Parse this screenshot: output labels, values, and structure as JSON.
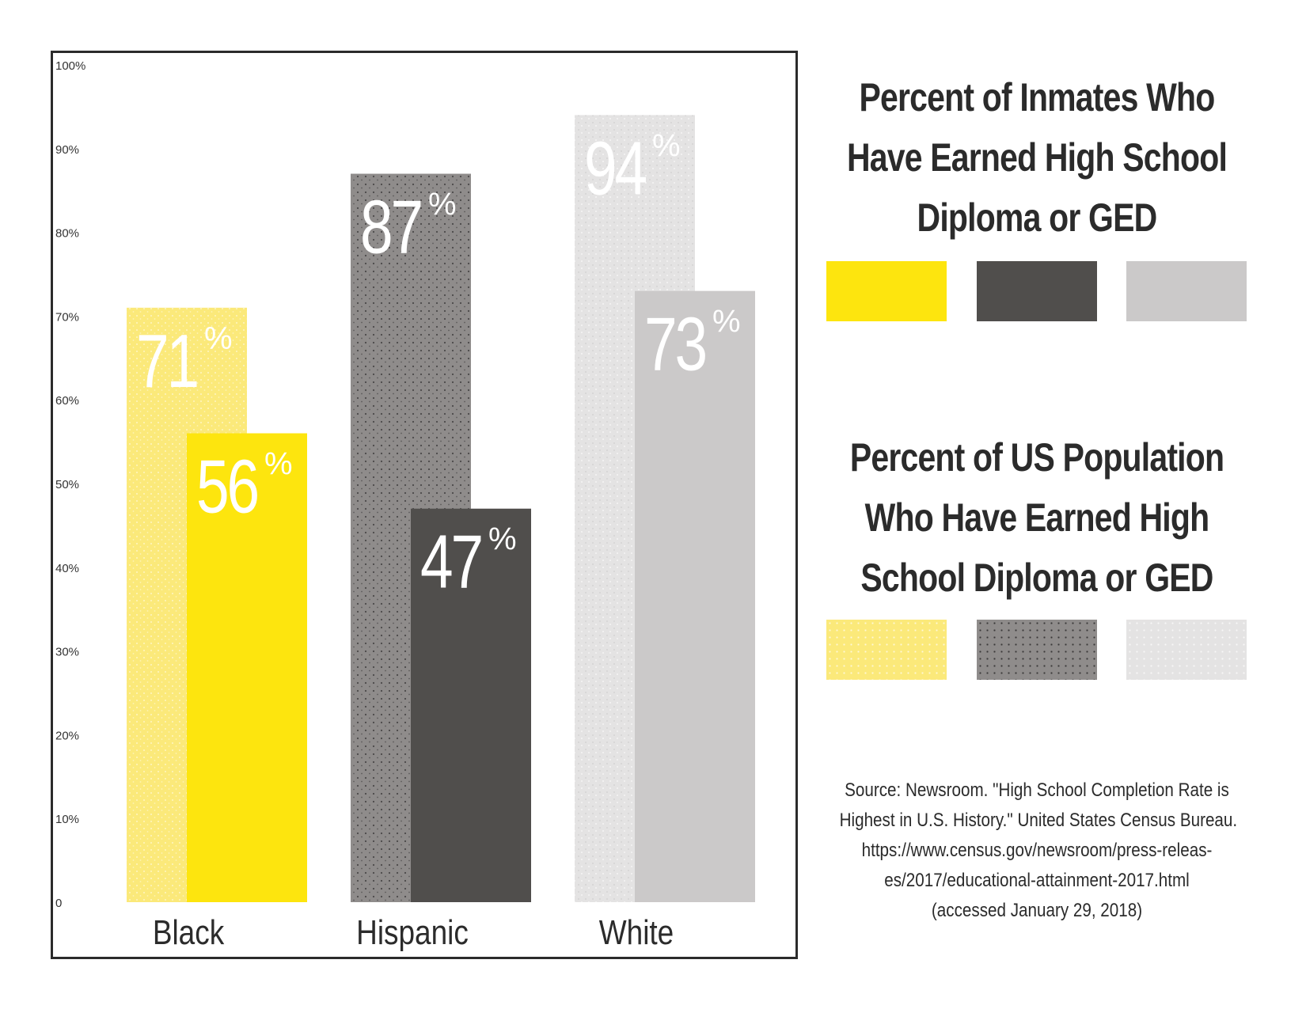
{
  "chart_data": {
    "type": "bar",
    "categories": [
      "Black",
      "Hispanic",
      "White"
    ],
    "series": [
      {
        "name": "Percent of US Population Who Have Earned High School Diploma or GED",
        "values": [
          71,
          87,
          94
        ],
        "color": "#fbe97a",
        "texture": "stippled"
      },
      {
        "name": "Percent of Inmates Who Have Earned High School Diploma or GED",
        "values": [
          56,
          47,
          73
        ],
        "color": "#fde50e"
      }
    ],
    "inmate_colors": [
      "#fde50e",
      "#504e4c",
      "#cbc9c9"
    ],
    "population_colors": [
      "#fbe97a",
      "#8f8c8b",
      "#e4e3e3"
    ],
    "data_labels": [
      {
        "population": "71",
        "inmates": "56"
      },
      {
        "population": "87",
        "inmates": "47"
      },
      {
        "population": "94",
        "inmates": "73"
      }
    ],
    "percent_sign": "%",
    "yticks": [
      "0",
      "10%",
      "20%",
      "30%",
      "40%",
      "50%",
      "60%",
      "70%",
      "80%",
      "90%",
      "100%"
    ],
    "ylim": [
      0,
      100
    ]
  },
  "legend": {
    "inmates_title": [
      "Percent of Inmates Who",
      "Have Earned High School",
      "Diploma or GED"
    ],
    "population_title": [
      "Percent of US Population",
      "Who Have Earned High",
      "School Diploma or GED"
    ]
  },
  "source": [
    "Source: Newsroom. \"High School Completion Rate is",
    "Highest in U.S. History.\" United States Census Bureau.",
    "https://www.census.gov/newsroom/press-releas-",
    "es/2017/educational-attainment-2017.html",
    "(accessed January 29, 2018)"
  ]
}
